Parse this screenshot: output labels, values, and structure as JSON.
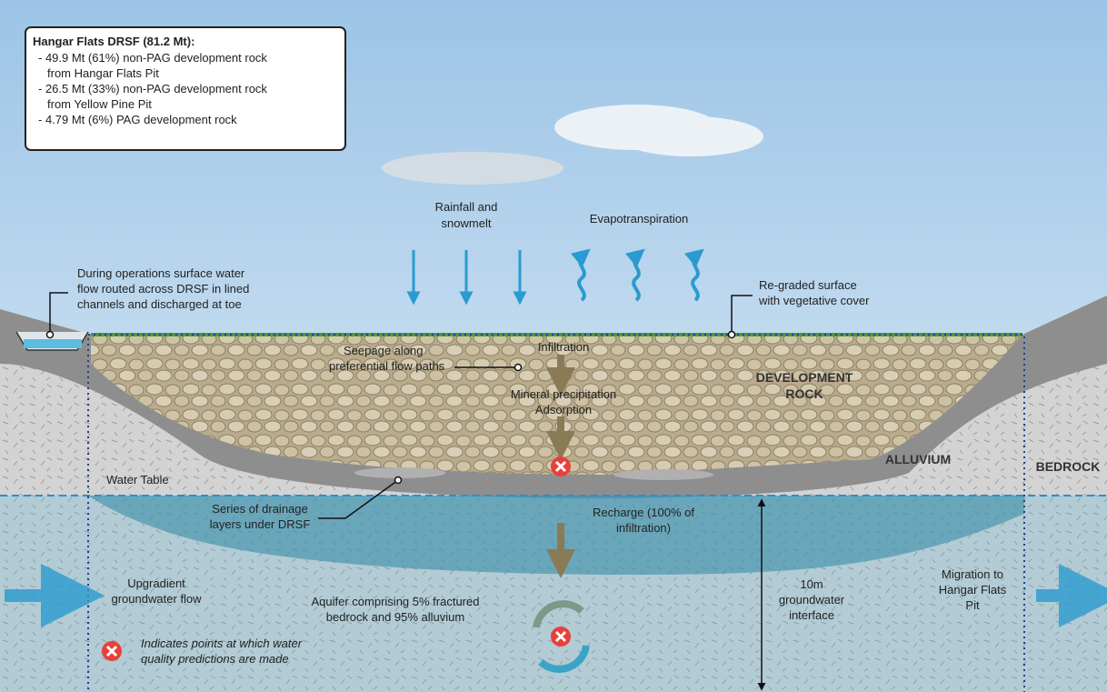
{
  "info_box": {
    "title": "Hangar Flats DRSF (81.2 Mt):",
    "lines": [
      "- 49.9 Mt (61%) non-PAG development rock",
      "from Hangar Flats Pit",
      "- 26.5 Mt (33%) non-PAG development rock",
      "from Yellow Pine Pit",
      "- 4.79 Mt (6%) PAG development rock"
    ]
  },
  "labels": {
    "rainfall": [
      "Rainfall and",
      "snowmelt"
    ],
    "evapotranspiration": [
      "Evapotranspiration"
    ],
    "surface_water": [
      "During operations surface water",
      "flow routed across DRSF in lined",
      "channels and discharged at toe"
    ],
    "regraded": [
      "Re-graded surface",
      "with vegetative cover"
    ],
    "seepage": [
      "Seepage along",
      "preferential flow paths"
    ],
    "infiltration": [
      "Infiltration"
    ],
    "development_rock": [
      "DEVELOPMENT",
      "ROCK"
    ],
    "mineral": [
      "Mineral precipitation",
      "Adsorption"
    ],
    "alluvium": [
      "ALLUVIUM"
    ],
    "bedrock": [
      "BEDROCK"
    ],
    "water_table": [
      "Water Table"
    ],
    "drainage": [
      "Series of drainage",
      "layers under DRSF"
    ],
    "recharge": [
      "Recharge (100% of",
      "infiltration)"
    ],
    "interface": [
      "10m",
      "groundwater",
      "interface"
    ],
    "upgradient": [
      "Upgradient",
      "groundwater flow"
    ],
    "aquifer": [
      "Aquifer comprising 5% fractured",
      "bedrock and 95% alluvium"
    ],
    "migration": [
      "Migration to",
      "Hangar Flats",
      "Pit"
    ],
    "legend": [
      "Indicates points at which water",
      "quality predictions are made"
    ]
  }
}
